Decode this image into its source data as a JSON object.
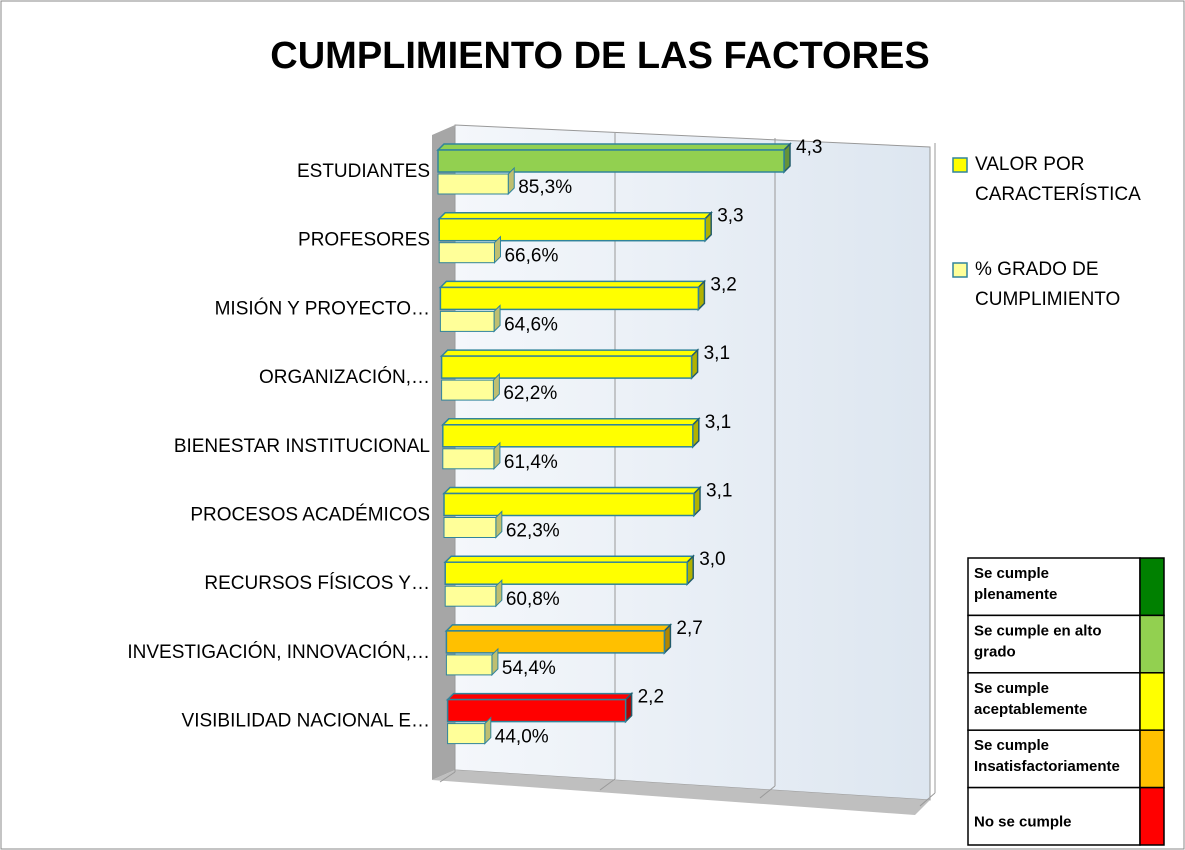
{
  "chart_data": {
    "type": "bar",
    "title": "CUMPLIMIENTO DE LAS FACTORES",
    "categories": [
      "ESTUDIANTES",
      "PROFESORES",
      "MISIÓN Y PROYECTO…",
      "ORGANIZACIÓN,…",
      "BIENESTAR INSTITUCIONAL",
      "PROCESOS ACADÉMICOS",
      "RECURSOS FÍSICOS Y…",
      "INVESTIGACIÓN, INNOVACIÓN,…",
      "VISIBILIDAD NACIONAL E…"
    ],
    "series": [
      {
        "name": "VALOR POR CARACTERÍSTICA",
        "color": "#ffff00",
        "colors": [
          "#92d050",
          "#ffff00",
          "#ffff00",
          "#ffff00",
          "#ffff00",
          "#ffff00",
          "#ffff00",
          "#ffc000",
          "#ff0000"
        ],
        "values": [
          4.3,
          3.3,
          3.2,
          3.1,
          3.1,
          3.1,
          3.0,
          2.7,
          2.2
        ],
        "value_labels": [
          "4,3",
          "3,3",
          "3,2",
          "3,1",
          "3,1",
          "3,1",
          "3,0",
          "2,7",
          "2,2"
        ]
      },
      {
        "name": "% GRADO DE CUMPLIMIENTO",
        "color": "#ffff99",
        "values": [
          0.853,
          0.666,
          0.646,
          0.622,
          0.614,
          0.623,
          0.608,
          0.544,
          0.44
        ],
        "value_labels": [
          "85,3%",
          "66,6%",
          "64,6%",
          "62,2%",
          "61,4%",
          "62,3%",
          "60,8%",
          "54,4%",
          "44,0%"
        ]
      }
    ],
    "xlim": [
      0,
      6
    ],
    "xticks": [
      0,
      2,
      4,
      6
    ],
    "grid": true,
    "legend_position": "right",
    "scale_table": [
      {
        "label": "Se cumple plenamente",
        "color": "#008000"
      },
      {
        "label": "Se cumple en alto grado",
        "color": "#92d050"
      },
      {
        "label": "Se cumple aceptablemente",
        "color": "#ffff00"
      },
      {
        "label": "Se cumple Insatisfactoriamente",
        "color": "#ffc000"
      },
      {
        "label": "No se cumple",
        "color": "#ff0000"
      }
    ]
  }
}
